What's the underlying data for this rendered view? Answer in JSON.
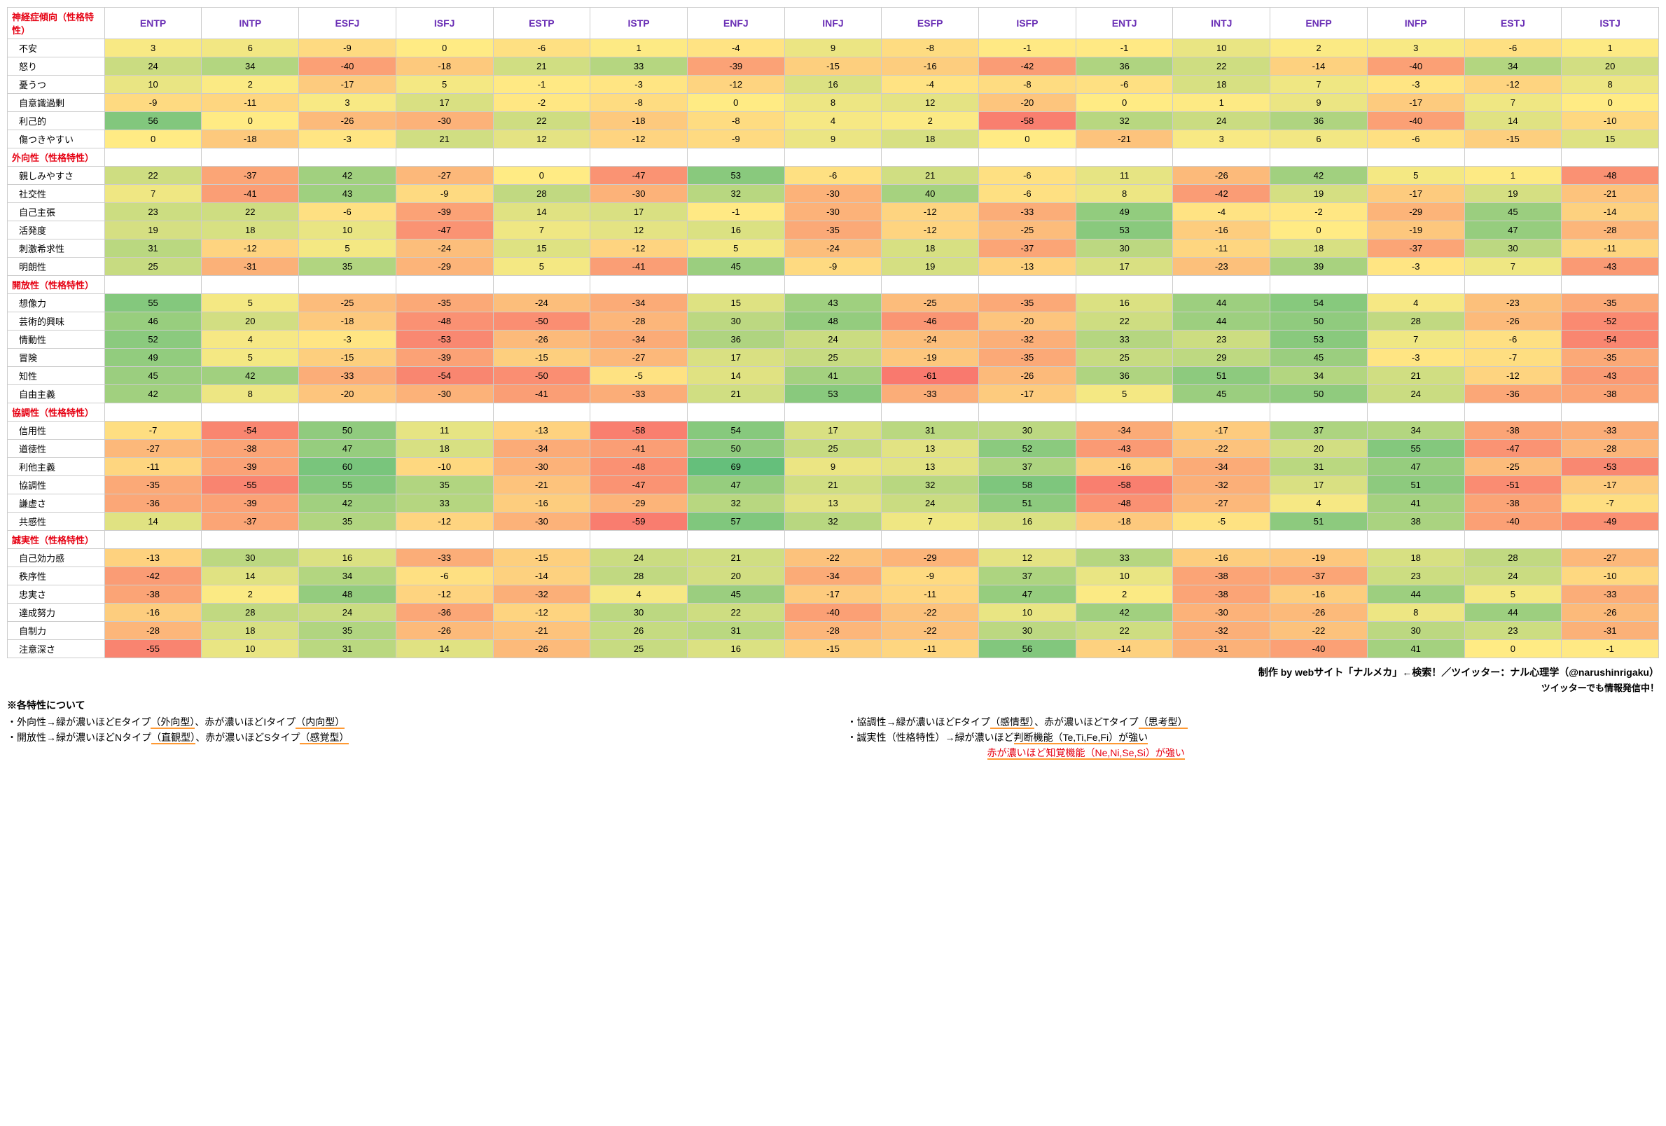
{
  "columns": [
    "ENTP",
    "INTP",
    "ESFJ",
    "ISFJ",
    "ESTP",
    "ISTP",
    "ENFJ",
    "INFJ",
    "ESFP",
    "ISFP",
    "ENTJ",
    "INTJ",
    "ENFP",
    "INFP",
    "ESTJ",
    "ISTJ"
  ],
  "sections": [
    {
      "title": "神経症傾向（性格特性）",
      "rows": [
        {
          "label": "不安",
          "v": [
            3,
            6,
            -9,
            0,
            -6,
            1,
            -4,
            9,
            -8,
            -1,
            -1,
            10,
            2,
            3,
            -6,
            1
          ]
        },
        {
          "label": "怒り",
          "v": [
            24,
            34,
            -40,
            -18,
            21,
            33,
            -39,
            -15,
            -16,
            -42,
            36,
            22,
            -14,
            -40,
            34,
            20
          ]
        },
        {
          "label": "憂うつ",
          "v": [
            10,
            2,
            -17,
            5,
            -1,
            -3,
            -12,
            16,
            -4,
            -8,
            -6,
            18,
            7,
            -3,
            -12,
            8
          ]
        },
        {
          "label": "自意識過剰",
          "v": [
            -9,
            -11,
            3,
            17,
            -2,
            -8,
            0,
            8,
            12,
            -20,
            0,
            1,
            9,
            -17,
            7,
            0
          ],
          "pad": true
        },
        {
          "label": "利己的",
          "v": [
            56,
            0,
            -26,
            -30,
            22,
            -18,
            -8,
            4,
            2,
            -58,
            32,
            24,
            36,
            -40,
            14,
            -10
          ]
        },
        {
          "label": "傷つきやすい",
          "v": [
            0,
            -18,
            -3,
            21,
            12,
            -12,
            -9,
            9,
            18,
            0,
            -21,
            3,
            6,
            -6,
            -15,
            15
          ]
        }
      ]
    },
    {
      "title": "外向性（性格特性）",
      "rows": [
        {
          "label": "親しみやすさ",
          "v": [
            22,
            -37,
            42,
            -27,
            0,
            -47,
            53,
            -6,
            21,
            -6,
            11,
            -26,
            42,
            5,
            1,
            -48
          ]
        },
        {
          "label": "社交性",
          "v": [
            7,
            -41,
            43,
            -9,
            28,
            -30,
            32,
            -30,
            40,
            -6,
            8,
            -42,
            19,
            -17,
            19,
            -21
          ]
        },
        {
          "label": "自己主張",
          "v": [
            23,
            22,
            -6,
            -39,
            14,
            17,
            -1,
            -30,
            -12,
            -33,
            49,
            -4,
            -2,
            -29,
            45,
            -14
          ]
        },
        {
          "label": "活発度",
          "v": [
            19,
            18,
            10,
            -47,
            7,
            12,
            16,
            -35,
            -12,
            -25,
            53,
            -16,
            0,
            -19,
            47,
            -28
          ]
        },
        {
          "label": "刺激希求性",
          "v": [
            31,
            -12,
            5,
            -24,
            15,
            -12,
            5,
            -24,
            18,
            -37,
            30,
            -11,
            18,
            -37,
            30,
            -11
          ]
        },
        {
          "label": "明朗性",
          "v": [
            25,
            -31,
            35,
            -29,
            5,
            -41,
            45,
            -9,
            19,
            -13,
            17,
            -23,
            39,
            -3,
            7,
            -43
          ]
        }
      ]
    },
    {
      "title": "開放性（性格特性）",
      "rows": [
        {
          "label": "想像力",
          "v": [
            55,
            5,
            -25,
            -35,
            -24,
            -34,
            15,
            43,
            -25,
            -35,
            16,
            44,
            54,
            4,
            -23,
            -35
          ]
        },
        {
          "label": "芸術的興味",
          "v": [
            46,
            20,
            -18,
            -48,
            -50,
            -28,
            30,
            48,
            -46,
            -20,
            22,
            44,
            50,
            28,
            -26,
            -52
          ]
        },
        {
          "label": "情動性",
          "v": [
            52,
            4,
            -3,
            -53,
            -26,
            -34,
            36,
            24,
            -24,
            -32,
            33,
            23,
            53,
            7,
            -6,
            -54
          ]
        },
        {
          "label": "冒険",
          "v": [
            49,
            5,
            -15,
            -39,
            -15,
            -27,
            17,
            25,
            -19,
            -35,
            25,
            29,
            45,
            -3,
            -7,
            -35
          ]
        },
        {
          "label": "知性",
          "v": [
            45,
            42,
            -33,
            -54,
            -50,
            -5,
            14,
            41,
            -61,
            -26,
            36,
            51,
            34,
            21,
            -12,
            -43
          ]
        },
        {
          "label": "自由主義",
          "v": [
            42,
            8,
            -20,
            -30,
            -41,
            -33,
            21,
            53,
            -33,
            -17,
            5,
            45,
            50,
            24,
            -36,
            -38
          ]
        }
      ]
    },
    {
      "title": "協調性（性格特性）",
      "rows": [
        {
          "label": "信用性",
          "v": [
            -7,
            -54,
            50,
            11,
            -13,
            -58,
            54,
            17,
            31,
            30,
            -34,
            -17,
            37,
            34,
            -38,
            -33
          ]
        },
        {
          "label": "道徳性",
          "v": [
            -27,
            -38,
            47,
            18,
            -34,
            -41,
            50,
            25,
            13,
            52,
            -43,
            -22,
            20,
            55,
            -47,
            -28
          ]
        },
        {
          "label": "利他主義",
          "v": [
            -11,
            -39,
            60,
            -10,
            -30,
            -48,
            69,
            9,
            13,
            37,
            -16,
            -34,
            31,
            47,
            -25,
            -53
          ]
        },
        {
          "label": "協調性",
          "v": [
            -35,
            -55,
            55,
            35,
            -21,
            -47,
            47,
            21,
            32,
            58,
            -58,
            -32,
            17,
            51,
            -51,
            -17
          ]
        },
        {
          "label": "謙虚さ",
          "v": [
            -36,
            -39,
            42,
            33,
            -16,
            -29,
            32,
            13,
            24,
            51,
            -48,
            -27,
            4,
            41,
            -38,
            -7
          ]
        },
        {
          "label": "共感性",
          "v": [
            14,
            -37,
            35,
            -12,
            -30,
            -59,
            57,
            32,
            7,
            16,
            -18,
            -5,
            51,
            38,
            -40,
            -49
          ]
        }
      ]
    },
    {
      "title": "誠実性（性格特性）",
      "rows": [
        {
          "label": "自己効力感",
          "v": [
            -13,
            30,
            16,
            -33,
            -15,
            24,
            21,
            -22,
            -29,
            12,
            33,
            -16,
            -19,
            18,
            28,
            -27
          ]
        },
        {
          "label": "秩序性",
          "v": [
            -42,
            14,
            34,
            -6,
            -14,
            28,
            20,
            -34,
            -9,
            37,
            10,
            -38,
            -37,
            23,
            24,
            -10
          ]
        },
        {
          "label": "忠実さ",
          "v": [
            -38,
            2,
            48,
            -12,
            -32,
            4,
            45,
            -17,
            -11,
            47,
            2,
            -38,
            -16,
            44,
            5,
            -33
          ]
        },
        {
          "label": "達成努力",
          "v": [
            -16,
            28,
            24,
            -36,
            -12,
            30,
            22,
            -40,
            -22,
            10,
            42,
            -30,
            -26,
            8,
            44,
            -26
          ]
        },
        {
          "label": "自制力",
          "v": [
            -28,
            18,
            35,
            -26,
            -21,
            26,
            31,
            -28,
            -22,
            30,
            22,
            -32,
            -22,
            30,
            23,
            -31
          ]
        },
        {
          "label": "注意深さ",
          "v": [
            -55,
            10,
            31,
            14,
            -26,
            25,
            16,
            -15,
            -11,
            56,
            -14,
            -31,
            -40,
            41,
            0,
            -1
          ]
        }
      ]
    }
  ],
  "heatmap": {
    "min": -70,
    "max": 70,
    "stops": [
      {
        "t": -70,
        "c": "#f8696b"
      },
      {
        "t": -35,
        "c": "#fba977"
      },
      {
        "t": 0,
        "c": "#ffeb84"
      },
      {
        "t": 35,
        "c": "#b1d580"
      },
      {
        "t": 70,
        "c": "#63be7b"
      }
    ]
  },
  "footer": {
    "credit1": "制作 by webサイト「ナルメカ」←検索！／ツイッター：ナル心理学（@narushinrigaku）",
    "credit2": "ツイッターでも情報発信中！",
    "title": "※各特性について",
    "line1a": "・外向性→緑が濃いほどEタイプ",
    "line1a_u": "（外向型）",
    "line1b": "、赤が濃いほどIタイプ",
    "line1b_u": "（内向型）",
    "line2a": "・協調性→緑が濃いほどFタイプ",
    "line2a_u": "（感情型）",
    "line2b": "、赤が濃いほどTタイプ",
    "line2b_u": "（思考型）",
    "line3a": "・開放性→緑が濃いほどNタイプ",
    "line3a_u": "（直観型）",
    "line3b": "、赤が濃いほどSタイプ",
    "line3b_u": "（感覚型）",
    "line4a": "・誠実性（性格特性）→緑が濃いほど",
    "line4a_u": "判断機能（Te,Ti,Fe,Fi）が強い",
    "line5a": "赤が濃いほど",
    "line5a_u": "知覚機能（Ne,Ni,Se,Si）が強い"
  }
}
